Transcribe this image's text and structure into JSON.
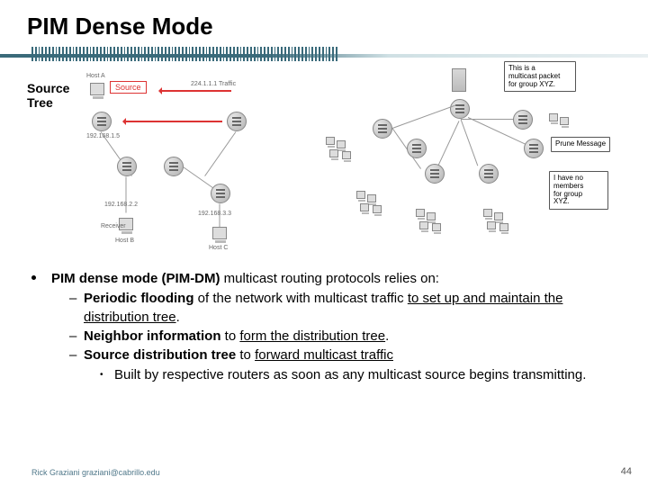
{
  "title": "PIM Dense Mode",
  "source_label_l1": "Source",
  "source_label_l2": "Tree",
  "left_diagram": {
    "source_box": "Source",
    "host_a": "Host A",
    "host_b": "Host B",
    "host_c": "Host C",
    "receiver_b": "Receiver",
    "ip_top": "224.1.1.1  Traffic",
    "ip_b": "192.168.1.5",
    "ip_d": "192.168.2.2",
    "ip_e": "192.168.3.3"
  },
  "right_diagram": {
    "callout_top_l1": "This is a",
    "callout_top_l2": "multicast packet",
    "callout_top_l3": "for group XYZ.",
    "callout_mid": "Prune Message",
    "callout_bot_l1": "I have no",
    "callout_bot_l2": "members",
    "callout_bot_l3": "for group",
    "callout_bot_l4": "XYZ."
  },
  "body": {
    "main_pre": "PIM dense mode (PIM-DM)",
    "main_post": " multicast routing protocols relies on:",
    "b1_pre": "Periodic flooding",
    "b1_mid": " of the network with multicast traffic ",
    "b1_u": "to set up and maintain the distribution tree",
    "b1_end": ".",
    "b2_pre": "Neighbor information",
    "b2_mid": " to ",
    "b2_u": "form the distribution tree",
    "b2_end": ".",
    "b3_pre": "Source distribution tree",
    "b3_mid": " to ",
    "b3_u": "forward multicast traffic",
    "b4": "Built by respective routers as soon as any multicast source begins transmitting."
  },
  "footer": "Rick Graziani  graziani@cabrillo.edu",
  "page_number": "44",
  "colors": {
    "accent": "#d33",
    "rule": "#3a6a7a",
    "footer": "#50788a"
  }
}
